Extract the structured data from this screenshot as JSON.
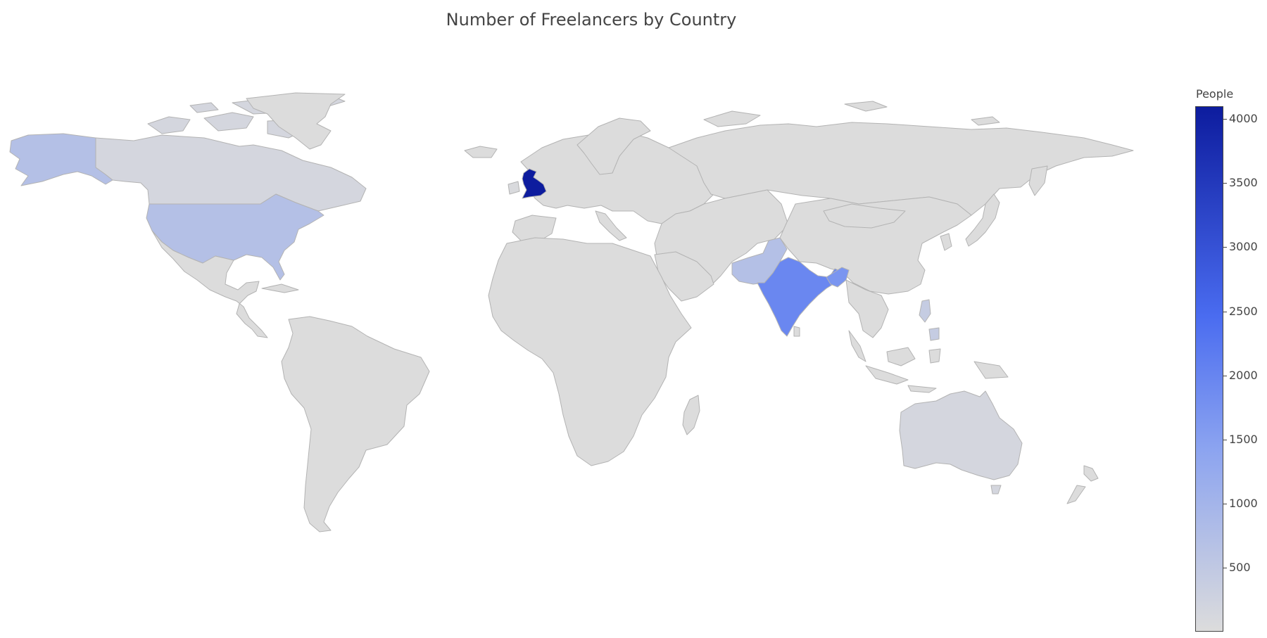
{
  "chart_data": {
    "type": "choropleth",
    "title": "Number of Freelancers by Country",
    "colorbar": {
      "title": "People",
      "range": [
        0,
        4100
      ],
      "ticks": [
        500,
        1000,
        1500,
        2000,
        2500,
        3000,
        3500,
        4000
      ],
      "tick_labels": [
        "500",
        "1000",
        "1500",
        "2000",
        "2500",
        "3000",
        "3500",
        "4000"
      ],
      "colorscale": [
        [
          0.0,
          "#dcdcdc"
        ],
        [
          0.35,
          "#8ba3f0"
        ],
        [
          0.6,
          "#4a6cf0"
        ],
        [
          1.0,
          "#0d1c9e"
        ]
      ]
    },
    "countries": [
      {
        "name": "United Kingdom",
        "value": 4100
      },
      {
        "name": "India",
        "value": 1950
      },
      {
        "name": "United States",
        "value": 700
      },
      {
        "name": "Pakistan",
        "value": 700
      },
      {
        "name": "Bangladesh",
        "value": 1700
      },
      {
        "name": "Canada",
        "value": 150
      },
      {
        "name": "Australia",
        "value": 150
      },
      {
        "name": "Philippines",
        "value": 400
      },
      {
        "name": "Nepal",
        "value": 300
      },
      {
        "name": "Kenya",
        "value": 120
      },
      {
        "name": "Ireland",
        "value": 60
      }
    ]
  }
}
